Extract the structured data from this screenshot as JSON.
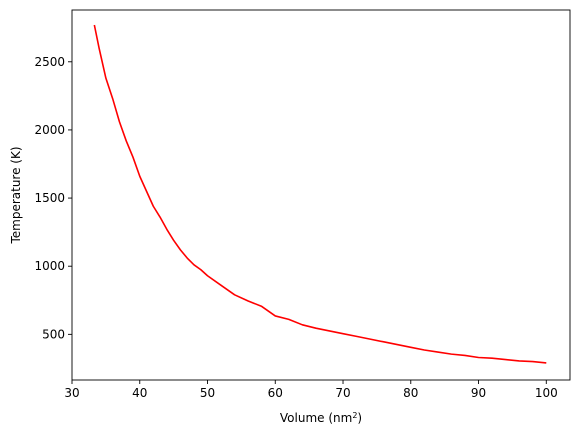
{
  "chart_data": {
    "type": "line",
    "xlabel": "Volume (nm",
    "xlabel_superscript": "2",
    "xlabel_suffix": ")",
    "ylabel": "Temperature (K)",
    "xlim": [
      30,
      103.5
    ],
    "ylim": [
      165,
      2880
    ],
    "xticks": [
      30,
      40,
      50,
      60,
      70,
      80,
      90,
      100
    ],
    "yticks": [
      500,
      1000,
      1500,
      2000,
      2500
    ],
    "grid": false,
    "series": [
      {
        "color": "#ff0000",
        "x": [
          33.3,
          34,
          35,
          36,
          37,
          38,
          39,
          40,
          41,
          42,
          43,
          44,
          45,
          46,
          47,
          48,
          49,
          50,
          52,
          54,
          56,
          58,
          60,
          62,
          64,
          66,
          68,
          70,
          72,
          74,
          76,
          78,
          80,
          82,
          84,
          86,
          88,
          90,
          92,
          94,
          96,
          98,
          100
        ],
        "y": [
          2770,
          2600,
          2380,
          2230,
          2060,
          1920,
          1800,
          1660,
          1550,
          1440,
          1360,
          1270,
          1190,
          1120,
          1060,
          1010,
          975,
          930,
          860,
          790,
          745,
          705,
          635,
          610,
          570,
          545,
          525,
          505,
          485,
          465,
          445,
          425,
          405,
          385,
          370,
          355,
          345,
          330,
          325,
          315,
          305,
          300,
          290
        ]
      }
    ]
  }
}
